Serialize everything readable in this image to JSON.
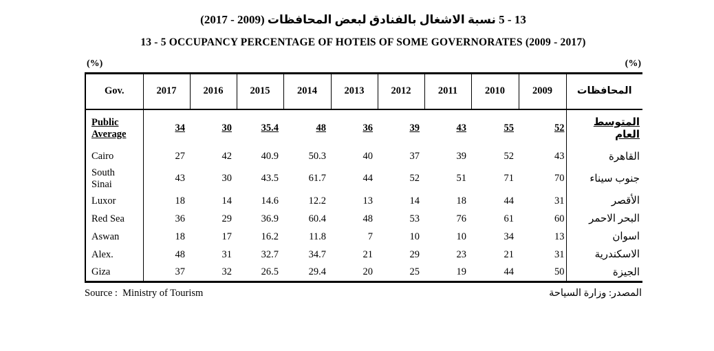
{
  "header": {
    "title_ar": "13 - 5  نسبة الاشغال بالفنادق لبعض المحافظات (2009 - 2017)",
    "title_en": "13 - 5  OCCUPANCY PERCENTAGE OF HOTElS OF SOME GOVERNORATES (2009 - 2017)",
    "unit_left": "(%)",
    "unit_right": "(%)"
  },
  "table": {
    "columns": [
      "Gov.",
      "2017",
      "2016",
      "2015",
      "2014",
      "2013",
      "2012",
      "2011",
      "2010",
      "2009",
      "المحافظات"
    ],
    "rows": [
      {
        "en": "Public Average",
        "ar": "المتوسط العام",
        "values": [
          "34",
          "30",
          "35.4",
          "48",
          "36",
          "39",
          "43",
          "55",
          "52"
        ],
        "emphasis": true
      },
      {
        "en": "Cairo",
        "ar": "القاهرة",
        "values": [
          "27",
          "42",
          "40.9",
          "50.3",
          "40",
          "37",
          "39",
          "52",
          "43"
        ],
        "emphasis": false
      },
      {
        "en": "South Sinai",
        "ar": "جنوب سيناء",
        "values": [
          "43",
          "30",
          "43.5",
          "61.7",
          "44",
          "52",
          "51",
          "71",
          "70"
        ],
        "emphasis": false
      },
      {
        "en": "Luxor",
        "ar": "الأقصر",
        "values": [
          "18",
          "14",
          "14.6",
          "12.2",
          "13",
          "14",
          "18",
          "44",
          "31"
        ],
        "emphasis": false
      },
      {
        "en": "Red Sea",
        "ar": "البحر الاحمر",
        "values": [
          "36",
          "29",
          "36.9",
          "60.4",
          "48",
          "53",
          "76",
          "61",
          "60"
        ],
        "emphasis": false
      },
      {
        "en": "Aswan",
        "ar": "اسوان",
        "values": [
          "18",
          "17",
          "16.2",
          "11.8",
          "7",
          "10",
          "10",
          "34",
          "13"
        ],
        "emphasis": false
      },
      {
        "en": "Alex.",
        "ar": "الاسكندرية",
        "values": [
          "48",
          "31",
          "32.7",
          "34.7",
          "21",
          "29",
          "23",
          "21",
          "31"
        ],
        "emphasis": false
      },
      {
        "en": "Giza",
        "ar": "الجيزة",
        "values": [
          "37",
          "32",
          "26.5",
          "29.4",
          "20",
          "25",
          "19",
          "44",
          "50"
        ],
        "emphasis": false
      }
    ]
  },
  "footer": {
    "source_en": "Source :  Ministry of Tourism",
    "source_ar": "المصدر: وزارة السياحة"
  },
  "chart_data": {
    "type": "table",
    "title": "13 - 5 OCCUPANCY PERCENTAGE OF HOTElS OF SOME GOVERNORATES (2009 - 2017)",
    "unit": "(%)",
    "categories": [
      "2017",
      "2016",
      "2015",
      "2014",
      "2013",
      "2012",
      "2011",
      "2010",
      "2009"
    ],
    "series": [
      {
        "name": "Public Average",
        "values": [
          34,
          30,
          35.4,
          48,
          36,
          39,
          43,
          55,
          52
        ]
      },
      {
        "name": "Cairo",
        "values": [
          27,
          42,
          40.9,
          50.3,
          40,
          37,
          39,
          52,
          43
        ]
      },
      {
        "name": "South Sinai",
        "values": [
          43,
          30,
          43.5,
          61.7,
          44,
          52,
          51,
          71,
          70
        ]
      },
      {
        "name": "Luxor",
        "values": [
          18,
          14,
          14.6,
          12.2,
          13,
          14,
          18,
          44,
          31
        ]
      },
      {
        "name": "Red Sea",
        "values": [
          36,
          29,
          36.9,
          60.4,
          48,
          53,
          76,
          61,
          60
        ]
      },
      {
        "name": "Aswan",
        "values": [
          18,
          17,
          16.2,
          11.8,
          7,
          10,
          10,
          34,
          13
        ]
      },
      {
        "name": "Alex.",
        "values": [
          48,
          31,
          32.7,
          34.7,
          21,
          29,
          23,
          21,
          31
        ]
      },
      {
        "name": "Giza",
        "values": [
          37,
          32,
          26.5,
          29.4,
          20,
          25,
          19,
          44,
          50
        ]
      }
    ]
  }
}
